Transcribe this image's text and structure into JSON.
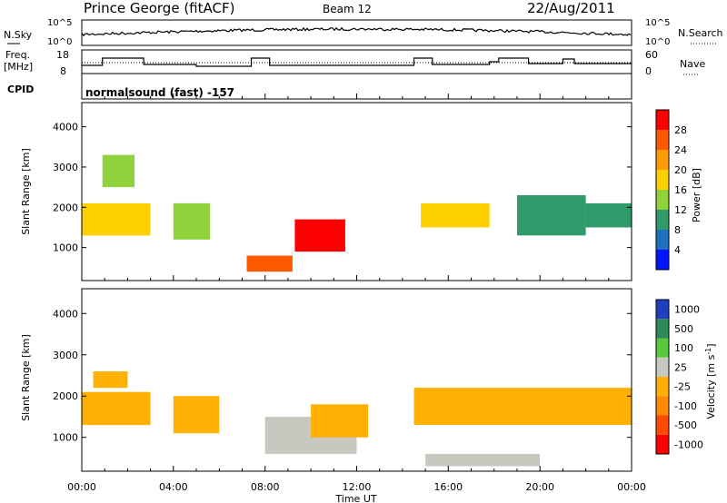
{
  "header": {
    "station": "Prince George (fitACF)",
    "beam": "Beam 12",
    "date": "22/Aug/2011"
  },
  "noise_panel": {
    "left_label": "N.Sky",
    "right_label": "N.Search",
    "left_ticks": [
      "10^5",
      "10^0"
    ],
    "right_ticks": [
      "10^5",
      "10^0"
    ]
  },
  "freq_panel": {
    "left_label_1": "Freq.",
    "left_label_2": "[MHz]",
    "right_label": "Nave",
    "left_ticks": [
      "18",
      "8"
    ],
    "right_ticks": [
      "60",
      "0"
    ]
  },
  "cpid_panel": {
    "label": "CPID",
    "text": "normalsound (fast) -157"
  },
  "x_axis": {
    "label": "Time UT",
    "ticks": [
      "00:00",
      "04:00",
      "08:00",
      "12:00",
      "16:00",
      "20:00",
      "00:00"
    ]
  },
  "power_panel": {
    "ylabel": "Slant Range [km]",
    "yticks": [
      "4000",
      "3000",
      "2000",
      "1000"
    ],
    "colorbar_label": "Power [dB]",
    "colorbar_ticks": [
      "28",
      "24",
      "20",
      "16",
      "12",
      "8",
      "4"
    ],
    "colors": [
      "#ff0000",
      "#ff5a00",
      "#ff9c00",
      "#ffd000",
      "#8fd23c",
      "#2f9a6a",
      "#1f6fbf",
      "#0015ff"
    ]
  },
  "velocity_panel": {
    "ylabel": "Slant Range [km]",
    "yticks": [
      "4000",
      "3000",
      "2000",
      "1000"
    ],
    "colorbar_label": "Velocity [m s",
    "colorbar_label_sup": "-1",
    "colorbar_label_end": "]",
    "colorbar_ticks": [
      "1000",
      "500",
      "100",
      "25",
      "-25",
      "-100",
      "-500",
      "-1000"
    ],
    "colors": [
      "#1f3fbf",
      "#2f8a5a",
      "#5ac83c",
      "#c8c8c0",
      "#ffb000",
      "#ff8a00",
      "#ff4a00",
      "#ff0000"
    ]
  },
  "chart_data": [
    {
      "type": "heatmap",
      "title": "Power",
      "xlabel": "Time UT",
      "ylabel": "Slant Range [km]",
      "xlim": [
        "00:00",
        "24:00"
      ],
      "ylim": [
        180,
        4600
      ],
      "colorbar": {
        "label": "Power [dB]",
        "range": [
          0,
          32
        ]
      },
      "regions": [
        {
          "t": [
            0.0,
            3.0
          ],
          "r": [
            1300,
            2100
          ],
          "value": 18
        },
        {
          "t": [
            0.9,
            2.3
          ],
          "r": [
            2500,
            3300
          ],
          "value": 14
        },
        {
          "t": [
            4.0,
            5.6
          ],
          "r": [
            1200,
            2100
          ],
          "value": 14
        },
        {
          "t": [
            7.2,
            9.2
          ],
          "r": [
            400,
            800
          ],
          "value": 26
        },
        {
          "t": [
            9.3,
            11.5
          ],
          "r": [
            900,
            1700
          ],
          "value": 30
        },
        {
          "t": [
            14.8,
            17.8
          ],
          "r": [
            1500,
            2100
          ],
          "value": 20
        },
        {
          "t": [
            19.0,
            22.0
          ],
          "r": [
            1300,
            2300
          ],
          "value": 8
        },
        {
          "t": [
            22.0,
            24.0
          ],
          "r": [
            1500,
            2100
          ],
          "value": 8
        }
      ]
    },
    {
      "type": "heatmap",
      "title": "Velocity",
      "xlabel": "Time UT",
      "ylabel": "Slant Range [km]",
      "xlim": [
        "00:00",
        "24:00"
      ],
      "ylim": [
        180,
        4600
      ],
      "colorbar": {
        "label": "Velocity [m s-1]",
        "range": [
          -1000,
          1000
        ]
      },
      "regions": [
        {
          "t": [
            0.0,
            3.0
          ],
          "r": [
            1300,
            2100
          ],
          "value": 0
        },
        {
          "t": [
            0.5,
            2.0
          ],
          "r": [
            2200,
            2600
          ],
          "value": -200
        },
        {
          "t": [
            4.0,
            6.0
          ],
          "r": [
            1100,
            2000
          ],
          "value": 0
        },
        {
          "t": [
            8.0,
            12.0
          ],
          "r": [
            600,
            1500
          ],
          "value": 150
        },
        {
          "t": [
            10.0,
            12.5
          ],
          "r": [
            1000,
            1800
          ],
          "value": -150
        },
        {
          "t": [
            14.5,
            24.0
          ],
          "r": [
            1300,
            2200
          ],
          "value": 0
        },
        {
          "t": [
            15.0,
            20.0
          ],
          "r": [
            300,
            600
          ],
          "value": 150
        }
      ]
    }
  ]
}
